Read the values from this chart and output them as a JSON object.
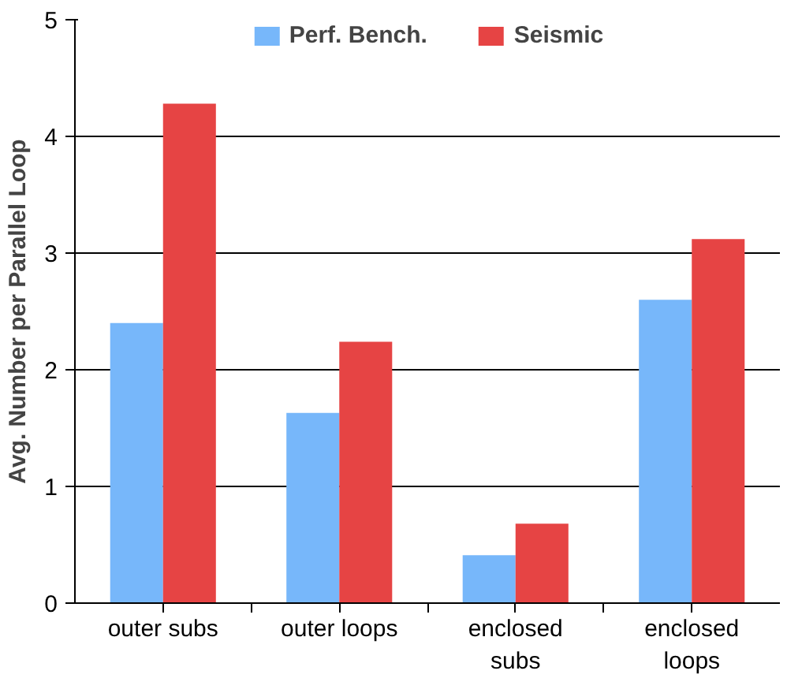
{
  "chart_data": {
    "type": "bar",
    "ylabel": "Avg. Number per Parallel Loop",
    "categories": [
      "outer subs",
      "outer loops",
      "enclosed\nsubs",
      "enclosed\nloops"
    ],
    "series": [
      {
        "name": "Perf. Bench.",
        "color": "#77b7fa",
        "values": [
          2.4,
          1.63,
          0.41,
          2.6
        ]
      },
      {
        "name": "Seismic",
        "color": "#e64444",
        "values": [
          4.28,
          2.24,
          0.68,
          3.12
        ]
      }
    ],
    "ylim": [
      0,
      5
    ],
    "yticks": [
      0,
      1,
      2,
      3,
      4,
      5
    ],
    "grid": "y",
    "legend": "top"
  }
}
